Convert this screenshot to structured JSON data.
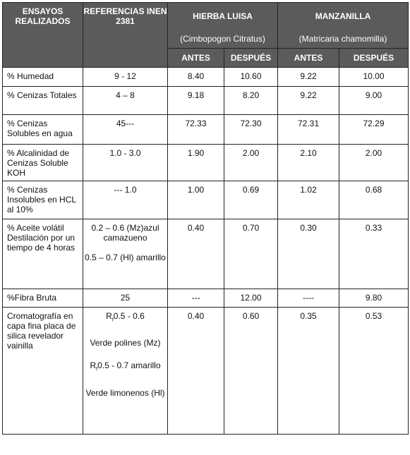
{
  "headers": {
    "ensayos": "ENSAYOS REALIZADOS",
    "referencias": "REFERENCIAS INEN 2381",
    "hierba": "HIERBA LUISA",
    "hierba_sci": "(Cimbopogon Citratus)",
    "manzanilla": "MANZANILLA",
    "manzanilla_sci": "(Matricaria chamomilla)",
    "antes": "ANTES",
    "despues": "DESPUÉS"
  },
  "rows": [
    {
      "ensayo": "% Humedad",
      "referencia": "9 -  12",
      "hl_antes": "8.40",
      "hl_despues": "10.60",
      "mz_antes": "9.22",
      "mz_despues": "10.00"
    },
    {
      "ensayo": "% Cenizas Totales",
      "referencia": "4 – 8",
      "hl_antes": "9.18",
      "hl_despues": "8.20",
      "mz_antes": "9.22",
      "mz_despues": "9.00"
    },
    {
      "ensayo": "% Cenizas Solubles en agua",
      "referencia": "45---",
      "hl_antes": "72.33",
      "hl_despues": "72.30",
      "mz_antes": "72.31",
      "mz_despues": "72.29"
    },
    {
      "ensayo": "% Alcalinidad de Cenizas Soluble KOH",
      "referencia": "1.0  -  3.0",
      "hl_antes": "1.90",
      "hl_despues": "2.00",
      "mz_antes": "2.10",
      "mz_despues": "2.00"
    },
    {
      "ensayo": "% Cenizas Insolubles en HCL al 10%",
      "referencia": "--- 1.0",
      "hl_antes": "1.00",
      "hl_despues": "0.69",
      "mz_antes": "1.02",
      "mz_despues": "0.68"
    },
    {
      "ensayo": "% Aceite volátil Destilación por un tiempo de 4 horas",
      "referencia_a": "0.2 – 0.6 (Mz)azul camazueno",
      "referencia_b": "0.5 – 0.7 (Hl) amarillo",
      "hl_antes": "0.40",
      "hl_despues": "0.70",
      "mz_antes": "0.30",
      "mz_despues": "0.33"
    },
    {
      "ensayo": "%Fibra Bruta",
      "referencia": "25",
      "hl_antes": "---",
      "hl_despues": "12.00",
      "mz_antes": "----",
      "mz_despues": "9.80"
    },
    {
      "ensayo": "Cromatografía en capa fina placa de silica revelador vainilla",
      "rf_symbol": "R",
      "rf_sub": "f",
      "referencia_a": "0.5  -  0.6",
      "referencia_b": "Verde polines (Mz)",
      "referencia_c": "0.5  -  0.7 amarillo",
      "referencia_d": "Verde limonenos (Hl)",
      "hl_antes": "0.40",
      "hl_despues": "0.60",
      "mz_antes": "0.35",
      "mz_despues": "0.53"
    }
  ]
}
